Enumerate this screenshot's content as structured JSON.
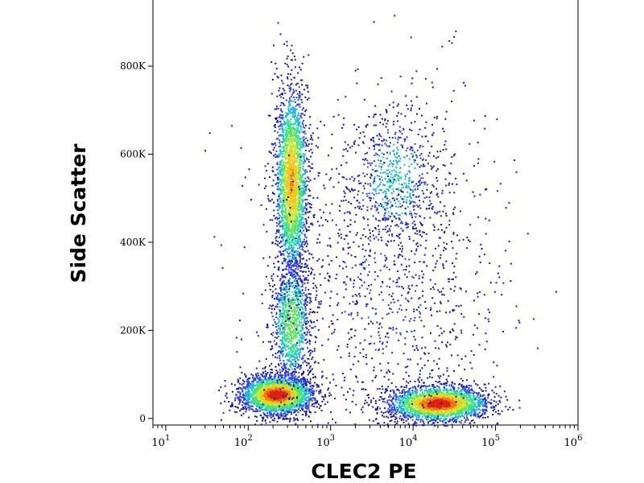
{
  "chart_data": {
    "type": "scatter",
    "title": "",
    "xlabel": "CLEC2 PE",
    "ylabel": "Side Scatter",
    "x_scale": "log",
    "xlim": [
      7,
      1000000
    ],
    "ylim": [
      -15000,
      950000
    ],
    "x_ticks": [
      {
        "base": "10",
        "exp": "1"
      },
      {
        "base": "10",
        "exp": "2"
      },
      {
        "base": "10",
        "exp": "3"
      },
      {
        "base": "10",
        "exp": "4"
      },
      {
        "base": "10",
        "exp": "5"
      },
      {
        "base": "10",
        "exp": "6"
      }
    ],
    "y_ticks": [
      {
        "value": 0,
        "label": "0"
      },
      {
        "value": 200000,
        "label": "200K"
      },
      {
        "value": 400000,
        "label": "400K"
      },
      {
        "value": 600000,
        "label": "600K"
      },
      {
        "value": 800000,
        "label": "800K"
      }
    ],
    "colormap": [
      "#1a1aa8",
      "#2f3df0",
      "#1fb0e0",
      "#2ce0a0",
      "#5ee35a",
      "#c8e830",
      "#f2c818",
      "#f07a10",
      "#e02010"
    ],
    "populations": [
      {
        "name_hint": "low-neg",
        "x_center": 220,
        "y_center": 55000,
        "x_spread_decades": 0.22,
        "y_spread": 22000,
        "count": 2600,
        "peak": 1.0
      },
      {
        "name_hint": "neg-tail-up",
        "x_center": 330,
        "y_center": 220000,
        "x_spread_decades": 0.12,
        "y_spread": 75000,
        "count": 1100,
        "peak": 0.55
      },
      {
        "name_hint": "granulocytes",
        "x_center": 330,
        "y_center": 540000,
        "x_spread_decades": 0.1,
        "y_spread": 110000,
        "count": 2400,
        "peak": 0.8
      },
      {
        "name_hint": "pos-low",
        "x_center": 20000,
        "y_center": 35000,
        "x_spread_decades": 0.3,
        "y_spread": 20000,
        "count": 2400,
        "peak": 1.0
      },
      {
        "name_hint": "pos-mid",
        "x_center": 6000,
        "y_center": 540000,
        "x_spread_decades": 0.28,
        "y_spread": 80000,
        "count": 650,
        "peak": 0.35
      },
      {
        "name_hint": "scatter-background",
        "x_center": 5000,
        "y_center": 300000,
        "x_spread_decades": 0.7,
        "y_spread": 220000,
        "count": 1200,
        "peak": 0.12
      }
    ]
  }
}
